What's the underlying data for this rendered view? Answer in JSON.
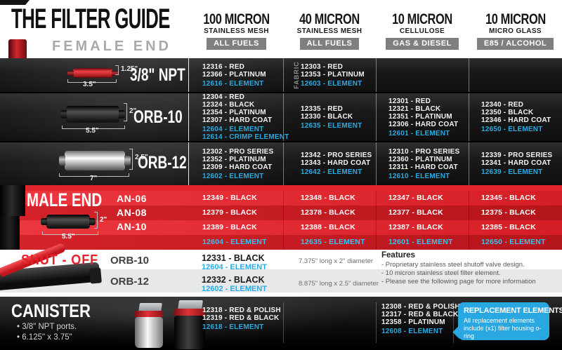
{
  "title": "THE FILTER GUIDE",
  "subtitle": "FEMALE END",
  "colors": {
    "accent_red": "#e2242c",
    "element_blue": "#29abe2",
    "badge_gray": "#7d7f81"
  },
  "columns": [
    {
      "micron": "100 MICRON",
      "media": "STAINLESS MESH",
      "fuel": "ALL FUELS"
    },
    {
      "micron": "40 MICRON",
      "media": "STAINLESS MESH",
      "fuel": "ALL FUELS"
    },
    {
      "micron": "10 MICRON",
      "media": "CELLULOSE",
      "fuel": "GAS & DIESEL"
    },
    {
      "micron": "10 MICRON",
      "media": "MICRO GLASS",
      "fuel": "E85 / ALCOHOL"
    }
  ],
  "female_rows": [
    {
      "label": "3/8\" NPT",
      "dims": {
        "height": "1.25\"",
        "length": "3.5\""
      },
      "cells": [
        {
          "parts": [
            "12316 - RED",
            "12366 - PLATINUM"
          ],
          "elements": [
            "12616 - ELEMENT"
          ]
        },
        {
          "note": "FABRIC",
          "parts": [
            "12303 - RED",
            "12353 - PLATINUM"
          ],
          "elements": [
            "12603 - ELEMENT"
          ]
        },
        {
          "parts": [],
          "elements": []
        },
        {
          "parts": [],
          "elements": []
        }
      ]
    },
    {
      "label": "ORB-10",
      "dims": {
        "height": "2\"",
        "length": "5.5\""
      },
      "cells": [
        {
          "parts": [
            "12304 - RED",
            "12324 - BLACK",
            "12354 - PLATINUM",
            "12307 - HARD COAT"
          ],
          "elements": [
            "12604 - ELEMENT",
            "12614 - CRIMP ELEMENT"
          ]
        },
        {
          "parts": [
            "12335 - RED",
            "12330 - BLACK"
          ],
          "elements": [
            "12635 - ELEMENT"
          ]
        },
        {
          "parts": [
            "12301 - RED",
            "12321 - BLACK",
            "12351 - PLATINUM",
            "12306 - HARD COAT"
          ],
          "elements": [
            "12601 - ELEMENT"
          ]
        },
        {
          "parts": [
            "12340 - RED",
            "12350 - BLACK",
            "12346 - HARD COAT"
          ],
          "elements": [
            "12650 - ELEMENT"
          ]
        }
      ]
    },
    {
      "label": "ORB-12",
      "dims": {
        "height": "2.5\"",
        "length": "7\""
      },
      "cells": [
        {
          "parts": [
            "12302 - PRO SERIES",
            "12352 - PLATINUM",
            "12309 - HARD COAT"
          ],
          "elements": [
            "12602 - ELEMENT"
          ]
        },
        {
          "parts": [
            "12342 - PRO SERIES",
            "12343 - HARD COAT"
          ],
          "elements": [
            "12642 - ELEMENT"
          ]
        },
        {
          "parts": [
            "12310 - PRO SERIES",
            "12360 - PLATINUM",
            "12311 - HARD COAT"
          ],
          "elements": [
            "12610 - ELEMENT"
          ]
        },
        {
          "parts": [
            "12339 - PRO SERIES",
            "12341 - HARD COAT"
          ],
          "elements": [
            "12639 - ELEMENT"
          ]
        }
      ]
    }
  ],
  "male": {
    "heading": "MALE END",
    "dims": {
      "height": "2\"",
      "length": "5.5\""
    },
    "rows": [
      {
        "label": "AN-06",
        "cells": [
          "12349 - BLACK",
          "12348 - BLACK",
          "12347 - BLACK",
          "12345 - BLACK"
        ]
      },
      {
        "label": "AN-08",
        "cells": [
          "12379 - BLACK",
          "12378 - BLACK",
          "12377 - BLACK",
          "12375 - BLACK"
        ]
      },
      {
        "label": "AN-10",
        "cells": [
          "12389 - BLACK",
          "12388 - BLACK",
          "12387 - BLACK",
          "12385 - BLACK"
        ]
      }
    ],
    "element_row": [
      "12604 - ELEMENT",
      "12635 - ELEMENT",
      "12601 - ELEMENT",
      "12650 - ELEMENT"
    ]
  },
  "shutoff": {
    "heading": "SHUT - OFF",
    "rows": [
      {
        "label": "ORB-10",
        "part": "12331 - BLACK",
        "element": "12604 - ELEMENT",
        "desc": "7.375\" long x 2\" diameter"
      },
      {
        "label": "ORB-12",
        "part": "12332 - BLACK",
        "element": "12602 - ELEMENT",
        "desc": "8.875\" long x 2.5\" diameter"
      }
    ],
    "features_title": "Features",
    "features": [
      "- Proprietary stainless steel shutoff valve design.",
      "- 10 micron stainless steel filter element.",
      "- Please see the following page for more information"
    ]
  },
  "canister": {
    "heading": "CANISTER",
    "bullets": [
      "• 3/8\" NPT ports.",
      "• 6.125\" x 3.75\""
    ],
    "cells": [
      {
        "parts": [
          "12318 - RED & POLISH",
          "12319 - RED & BLACK"
        ],
        "elements": [
          "12618 - ELEMENT"
        ]
      },
      {
        "parts": [],
        "elements": []
      },
      {
        "parts": [
          "12308 - RED & POLISH",
          "12317 - RED & BLACK",
          "12358 - PLATINUM"
        ],
        "elements": [
          "12608 - ELEMENT"
        ]
      },
      {
        "parts": [],
        "elements": []
      }
    ],
    "callout": {
      "title": "REPLACEMENT ELEMENTS",
      "body": "All replacement elements include (x1) filter housing o-ring"
    }
  },
  "images": {
    "sidebar_female": "red-inline-fuel-filter-photo",
    "row_38npt": "red-mini-filter-photo",
    "row_orb10": "black-filter-photo",
    "row_orb12": "chrome-filter-photo",
    "sidebar_male": "black-an-fitting-photo",
    "male_filter": "black-inline-filter-photo",
    "shutoff_valve": "shutoff-valve-red-lever-photo",
    "canisters": "chrome-and-black-canister-filter-photos"
  }
}
